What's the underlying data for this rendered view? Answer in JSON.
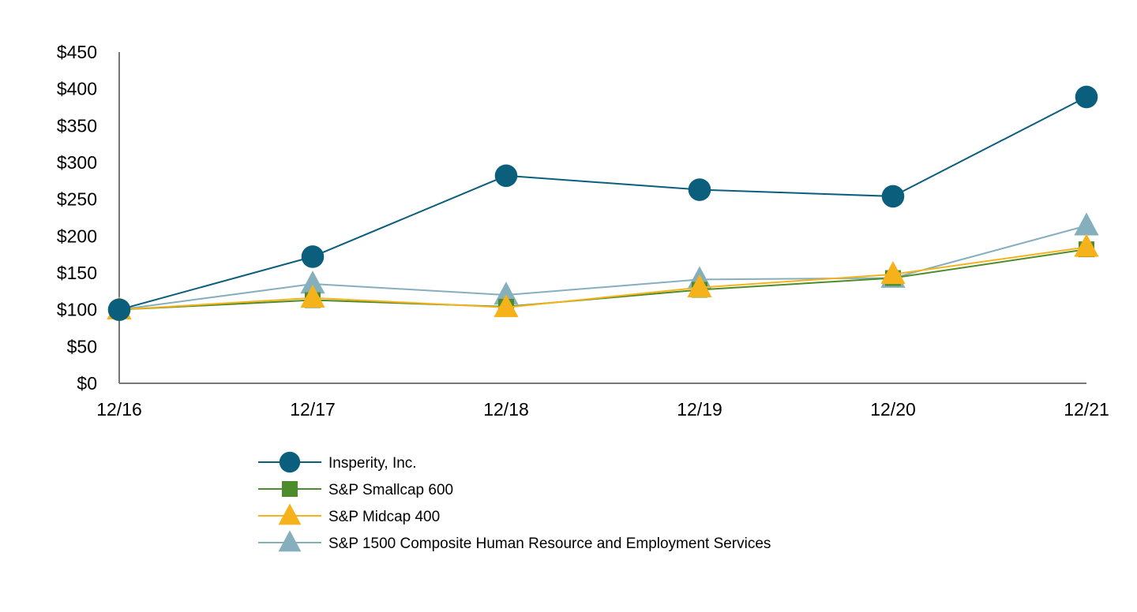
{
  "chart_data": {
    "type": "line",
    "title": "",
    "xlabel": "",
    "ylabel": "",
    "categories": [
      "12/16",
      "12/17",
      "12/18",
      "12/19",
      "12/20",
      "12/21"
    ],
    "ylim": [
      0,
      450
    ],
    "yticks": [
      0,
      50,
      100,
      150,
      200,
      250,
      300,
      350,
      400,
      450
    ],
    "ytick_labels": [
      "$0",
      "$50",
      "$100",
      "$150",
      "$200",
      "$250",
      "$300",
      "$350",
      "$400",
      "$450"
    ],
    "grid": false,
    "legend_position": "bottom",
    "series": [
      {
        "name": "Insperity, Inc.",
        "key": "insperity",
        "marker": "circle",
        "color": "#0b5f7c",
        "values": [
          100,
          172,
          282,
          263,
          254,
          389
        ]
      },
      {
        "name": "S&P Smallcap 600",
        "key": "smallcap",
        "marker": "square",
        "color": "#4d8c2a",
        "values": [
          100,
          113,
          104,
          127,
          143,
          182
        ]
      },
      {
        "name": "S&P Midcap 400",
        "key": "midcap",
        "marker": "triangle",
        "color": "#f6b21b",
        "values": [
          100,
          116,
          103,
          130,
          148,
          185
        ]
      },
      {
        "name": "S&P 1500 Composite Human Resource and Employment Services",
        "key": "hr",
        "marker": "triangle",
        "color": "#86afbe",
        "values": [
          100,
          135,
          120,
          141,
          143,
          214
        ]
      }
    ]
  }
}
